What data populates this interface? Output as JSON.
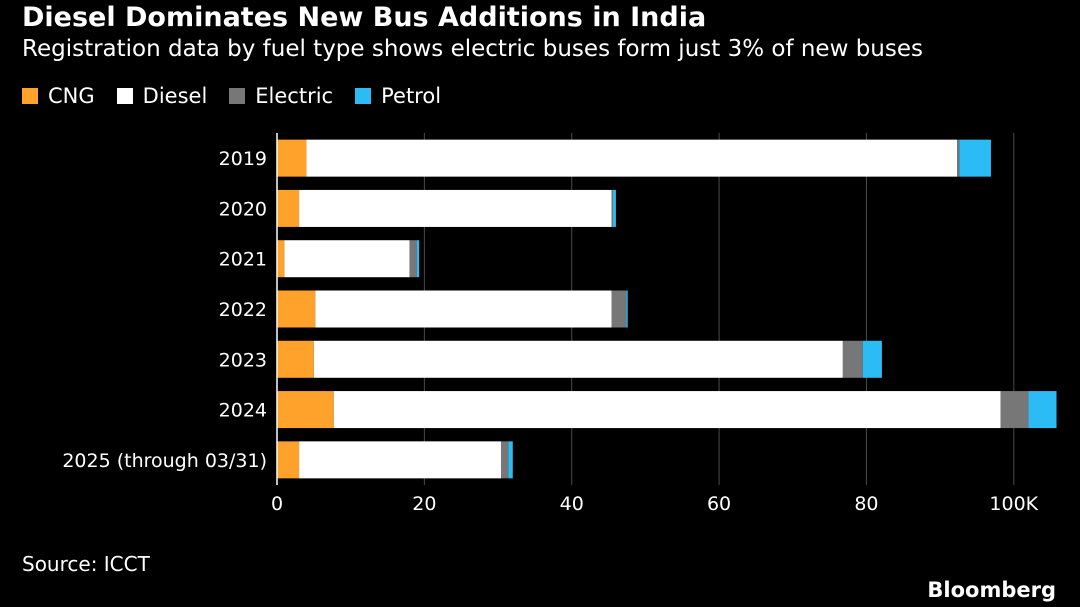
{
  "title": "Diesel Dominates New Bus Additions in India",
  "subtitle": "Registration data by fuel type shows electric buses form just 3% of new buses",
  "source": "Source: ICCT",
  "brand": "Bloomberg",
  "chart_data": {
    "type": "bar",
    "orientation": "horizontal",
    "stacked": true,
    "categories": [
      "2019",
      "2020",
      "2021",
      "2022",
      "2023",
      "2024",
      "2025 (through 03/31)"
    ],
    "series": [
      {
        "name": "CNG",
        "color": "#ffa22b",
        "values": [
          4.0,
          3.0,
          1.0,
          5.2,
          5.0,
          7.7,
          3.0
        ]
      },
      {
        "name": "Diesel",
        "color": "#ffffff",
        "values": [
          88.3,
          42.4,
          17.0,
          40.2,
          71.8,
          90.5,
          27.4
        ]
      },
      {
        "name": "Electric",
        "color": "#777777",
        "values": [
          0.3,
          0.2,
          1.0,
          2.0,
          2.7,
          3.8,
          1.0
        ]
      },
      {
        "name": "Petrol",
        "color": "#2bbcf5",
        "values": [
          4.3,
          0.4,
          0.3,
          0.2,
          2.6,
          3.8,
          0.6
        ]
      }
    ],
    "xlim": [
      0,
      106
    ],
    "xticks": [
      0,
      20,
      40,
      60,
      80,
      100
    ],
    "xtick_labels": [
      "0",
      "20",
      "40",
      "60",
      "80",
      "100K"
    ],
    "grid": true,
    "legend": "top-left"
  }
}
